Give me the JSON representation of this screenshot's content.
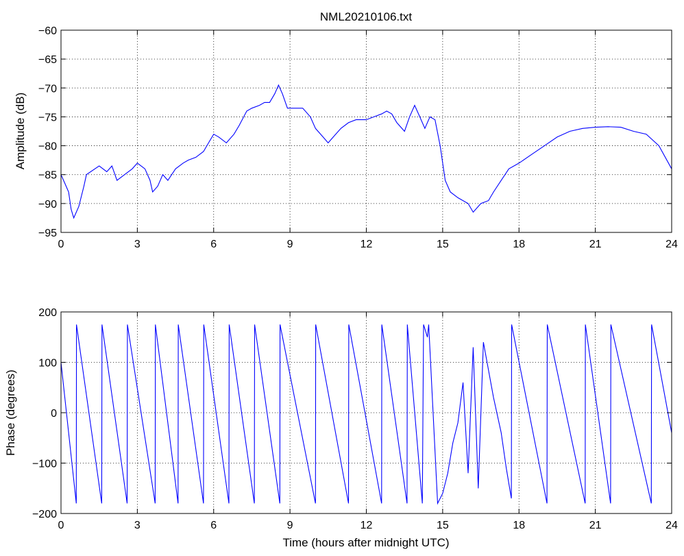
{
  "chart_data": [
    {
      "type": "line",
      "title": "NML20210106.txt",
      "xlabel": "",
      "ylabel": "Amplitude (dB)",
      "xlim": [
        0,
        24
      ],
      "ylim": [
        -95,
        -60
      ],
      "xticks": [
        0,
        3,
        6,
        9,
        12,
        15,
        18,
        21,
        24
      ],
      "yticks": [
        -95,
        -90,
        -85,
        -80,
        -75,
        -70,
        -65,
        -60
      ],
      "grid": true,
      "color": "#0000ff",
      "series": [
        {
          "x": [
            0,
            0.15,
            0.3,
            0.4,
            0.5,
            0.7,
            0.9,
            1.0,
            1.5,
            1.8,
            2.0,
            2.2,
            2.5,
            2.8,
            3.0,
            3.3,
            3.5,
            3.6,
            3.8,
            4.0,
            4.2,
            4.5,
            4.8,
            5.0,
            5.3,
            5.6,
            5.8,
            6.0,
            6.2,
            6.5,
            6.8,
            7.0,
            7.3,
            7.5,
            7.8,
            8.0,
            8.2,
            8.4,
            8.55,
            8.7,
            8.9,
            9.2,
            9.5,
            9.8,
            10.0,
            10.3,
            10.5,
            10.7,
            11.0,
            11.3,
            11.6,
            12.0,
            12.3,
            12.6,
            12.8,
            13.0,
            13.2,
            13.5,
            13.7,
            13.9,
            14.1,
            14.3,
            14.5,
            14.7,
            14.9,
            15.1,
            15.3,
            15.6,
            16.0,
            16.2,
            16.5,
            16.8,
            17.0,
            17.3,
            17.6,
            18.0,
            18.5,
            19.0,
            19.5,
            20.0,
            20.5,
            21.0,
            21.5,
            22.0,
            22.5,
            23.0,
            23.5,
            24.0
          ],
          "values": [
            -85,
            -86.5,
            -88,
            -91,
            -92.5,
            -90.5,
            -87,
            -85,
            -83.5,
            -84.5,
            -83.5,
            -86,
            -85,
            -84,
            -83,
            -84,
            -86,
            -88,
            -87,
            -85,
            -86,
            -84,
            -83,
            -82.5,
            -82,
            -81,
            -79.5,
            -78,
            -78.5,
            -79.5,
            -78,
            -76.5,
            -74,
            -73.5,
            -73,
            -72.5,
            -72.5,
            -71,
            -69.5,
            -71,
            -73.5,
            -73.5,
            -73.5,
            -75,
            -77,
            -78.5,
            -79.5,
            -78.5,
            -77,
            -76,
            -75.5,
            -75.5,
            -75,
            -74.5,
            -74,
            -74.5,
            -76,
            -77.5,
            -75,
            -73,
            -75,
            -77,
            -75,
            -75.5,
            -80,
            -86,
            -88,
            -89,
            -90,
            -91.5,
            -90,
            -89.5,
            -88,
            -86,
            -84,
            -83,
            -81.5,
            -80,
            -78.5,
            -77.5,
            -77,
            -76.8,
            -76.7,
            -76.8,
            -77.5,
            -78,
            -80,
            -84
          ]
        }
      ]
    },
    {
      "type": "line",
      "title": "",
      "xlabel": "Time (hours after midnight UTC)",
      "ylabel": "Phase (degrees)",
      "xlim": [
        0,
        24
      ],
      "ylim": [
        -200,
        200
      ],
      "xticks": [
        0,
        3,
        6,
        9,
        12,
        15,
        18,
        21,
        24
      ],
      "yticks": [
        -200,
        -100,
        0,
        100,
        200
      ],
      "grid": true,
      "color": "#0000ff",
      "series": [
        {
          "x": [
            0,
            0.6,
            0.61,
            1.6,
            1.61,
            2.6,
            2.61,
            3.7,
            3.71,
            4.6,
            4.61,
            5.6,
            5.61,
            6.6,
            6.61,
            7.6,
            7.61,
            8.6,
            8.61,
            10.0,
            10.01,
            11.3,
            11.31,
            12.6,
            12.61,
            13.6,
            13.61,
            14.2,
            14.25,
            14.4,
            14.45,
            14.8,
            15.0,
            15.2,
            15.4,
            15.6,
            15.8,
            16.0,
            16.2,
            16.4,
            16.6,
            17.0,
            17.3,
            17.5,
            17.7,
            17.71,
            19.1,
            19.11,
            20.6,
            20.61,
            21.6,
            21.61,
            23.2,
            23.21,
            24.0
          ],
          "values": [
            100,
            -180,
            175,
            -180,
            175,
            -180,
            175,
            -180,
            175,
            -180,
            175,
            -180,
            175,
            -180,
            175,
            -180,
            175,
            -180,
            175,
            -180,
            175,
            -180,
            175,
            -180,
            175,
            -180,
            175,
            -180,
            175,
            150,
            175,
            -180,
            -160,
            -120,
            -60,
            -20,
            60,
            -120,
            130,
            -150,
            140,
            30,
            -40,
            -110,
            -170,
            175,
            -180,
            175,
            -180,
            175,
            -180,
            175,
            -180,
            175,
            -40
          ]
        }
      ]
    }
  ]
}
